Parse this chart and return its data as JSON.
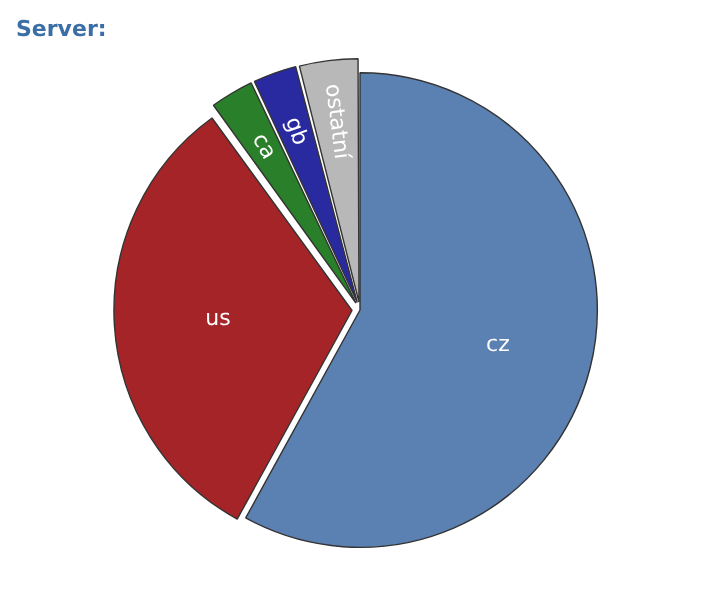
{
  "chart_data": {
    "type": "pie",
    "title": "Server:",
    "categories": [
      "cz",
      "us",
      "ca",
      "gb",
      "ostatní"
    ],
    "values": [
      58,
      32,
      3,
      3,
      4
    ],
    "colors": [
      "#5b80b2",
      "#a52428",
      "#2a7f2a",
      "#2a2aa0",
      "#b8b8b8"
    ],
    "legend": false
  }
}
